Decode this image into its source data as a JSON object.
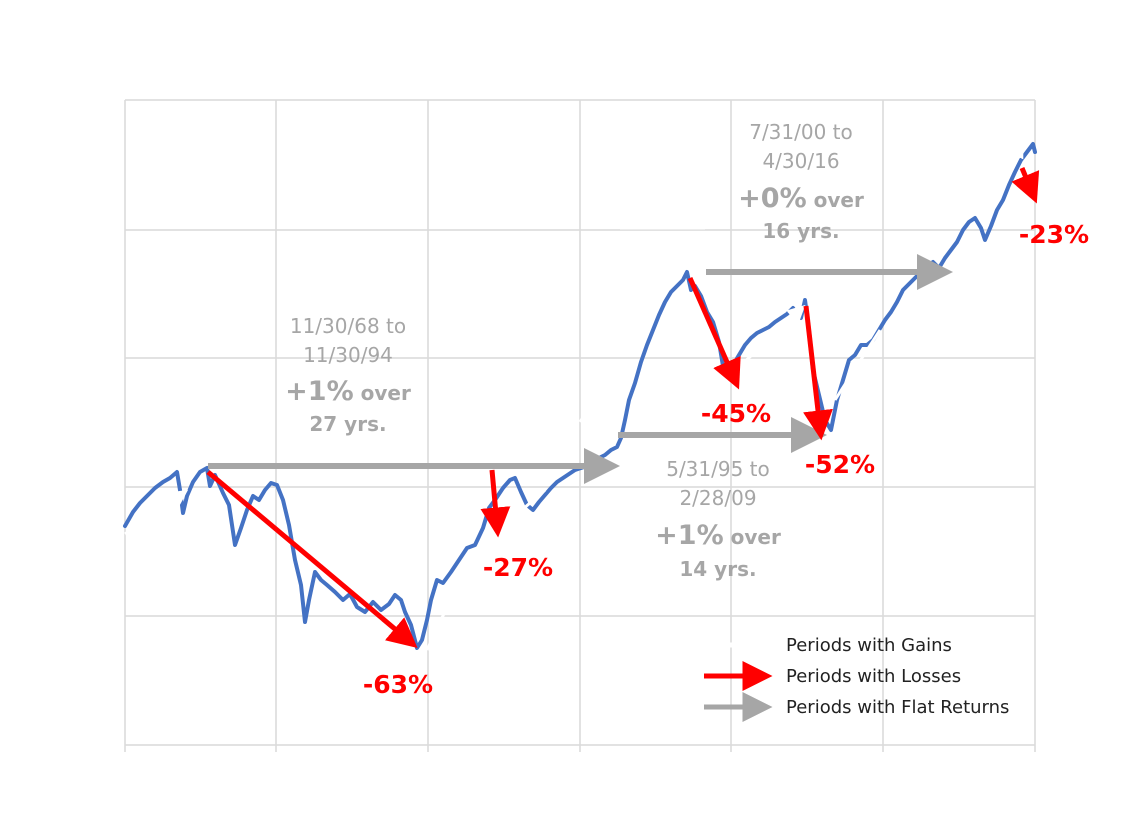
{
  "chart_data": {
    "type": "line",
    "title": "",
    "xlabel": "",
    "ylabel": "",
    "grid": true,
    "legend_position": "bottom-right",
    "colors": {
      "series": "#4472c4",
      "gain": "#ffffff",
      "loss": "#ff0000",
      "flat": "#a6a6a6",
      "grid": "#d9d9d9"
    },
    "series_points": [
      [
        0,
        526
      ],
      [
        8,
        512
      ],
      [
        15,
        503
      ],
      [
        22,
        496
      ],
      [
        30,
        488
      ],
      [
        38,
        482
      ],
      [
        45,
        478
      ],
      [
        52,
        472
      ],
      [
        55,
        490
      ],
      [
        58,
        513
      ],
      [
        62,
        496
      ],
      [
        68,
        482
      ],
      [
        75,
        472
      ],
      [
        82,
        468
      ],
      [
        85,
        486
      ],
      [
        90,
        475
      ],
      [
        98,
        493
      ],
      [
        104,
        505
      ],
      [
        110,
        545
      ],
      [
        116,
        528
      ],
      [
        122,
        510
      ],
      [
        128,
        496
      ],
      [
        134,
        500
      ],
      [
        140,
        490
      ],
      [
        146,
        483
      ],
      [
        152,
        485
      ],
      [
        158,
        500
      ],
      [
        164,
        525
      ],
      [
        170,
        560
      ],
      [
        176,
        585
      ],
      [
        180,
        622
      ],
      [
        184,
        600
      ],
      [
        190,
        572
      ],
      [
        196,
        580
      ],
      [
        202,
        585
      ],
      [
        210,
        592
      ],
      [
        218,
        600
      ],
      [
        225,
        594
      ],
      [
        232,
        607
      ],
      [
        240,
        612
      ],
      [
        248,
        602
      ],
      [
        256,
        610
      ],
      [
        264,
        604
      ],
      [
        270,
        595
      ],
      [
        276,
        600
      ],
      [
        280,
        612
      ],
      [
        286,
        625
      ],
      [
        292,
        648
      ],
      [
        297,
        640
      ],
      [
        302,
        620
      ],
      [
        306,
        600
      ],
      [
        312,
        580
      ],
      [
        318,
        583
      ],
      [
        326,
        572
      ],
      [
        334,
        560
      ],
      [
        342,
        548
      ],
      [
        350,
        545
      ],
      [
        358,
        528
      ],
      [
        364,
        508
      ],
      [
        370,
        500
      ],
      [
        378,
        488
      ],
      [
        385,
        480
      ],
      [
        390,
        478
      ],
      [
        396,
        492
      ],
      [
        402,
        505
      ],
      [
        408,
        510
      ],
      [
        414,
        502
      ],
      [
        420,
        495
      ],
      [
        426,
        488
      ],
      [
        432,
        482
      ],
      [
        438,
        478
      ],
      [
        444,
        474
      ],
      [
        450,
        470
      ],
      [
        456,
        468
      ],
      [
        462,
        466
      ],
      [
        468,
        462
      ],
      [
        474,
        458
      ],
      [
        480,
        455
      ],
      [
        486,
        450
      ],
      [
        492,
        447
      ],
      [
        496,
        438
      ],
      [
        500,
        420
      ],
      [
        504,
        400
      ],
      [
        510,
        383
      ],
      [
        516,
        362
      ],
      [
        522,
        345
      ],
      [
        528,
        330
      ],
      [
        534,
        315
      ],
      [
        540,
        302
      ],
      [
        546,
        292
      ],
      [
        552,
        286
      ],
      [
        558,
        280
      ],
      [
        562,
        272
      ],
      [
        566,
        290
      ],
      [
        570,
        286
      ],
      [
        576,
        296
      ],
      [
        582,
        312
      ],
      [
        588,
        322
      ],
      [
        594,
        342
      ],
      [
        598,
        366
      ],
      [
        602,
        374
      ],
      [
        608,
        365
      ],
      [
        614,
        355
      ],
      [
        620,
        345
      ],
      [
        626,
        338
      ],
      [
        632,
        333
      ],
      [
        638,
        330
      ],
      [
        644,
        327
      ],
      [
        650,
        322
      ],
      [
        656,
        318
      ],
      [
        662,
        314
      ],
      [
        668,
        308
      ],
      [
        672,
        314
      ],
      [
        676,
        318
      ],
      [
        680,
        300
      ],
      [
        684,
        330
      ],
      [
        688,
        370
      ],
      [
        694,
        395
      ],
      [
        700,
        420
      ],
      [
        706,
        430
      ],
      [
        712,
        400
      ],
      [
        718,
        380
      ],
      [
        724,
        360
      ],
      [
        730,
        355
      ],
      [
        736,
        345
      ],
      [
        742,
        345
      ],
      [
        748,
        340
      ],
      [
        754,
        330
      ],
      [
        760,
        320
      ],
      [
        766,
        312
      ],
      [
        772,
        302
      ],
      [
        778,
        290
      ],
      [
        784,
        284
      ],
      [
        790,
        278
      ],
      [
        796,
        272
      ],
      [
        802,
        266
      ],
      [
        808,
        262
      ],
      [
        814,
        268
      ],
      [
        820,
        258
      ],
      [
        826,
        250
      ],
      [
        832,
        242
      ],
      [
        838,
        230
      ],
      [
        844,
        222
      ],
      [
        850,
        218
      ],
      [
        856,
        228
      ],
      [
        860,
        240
      ],
      [
        866,
        226
      ],
      [
        872,
        210
      ],
      [
        878,
        200
      ],
      [
        884,
        185
      ],
      [
        890,
        172
      ],
      [
        896,
        160
      ],
      [
        902,
        152
      ],
      [
        908,
        144
      ],
      [
        910,
        152
      ]
    ],
    "series_origin": [
      125,
      100
    ],
    "losses": [
      "-63%",
      "-27%",
      "-45%",
      "-52%",
      "-23%"
    ],
    "flat_periods": [
      {
        "date_line1": "11/30/68 to",
        "date_line2": "11/30/94",
        "ret_value": "+1%",
        "ret_suffix": " over",
        "years": "27 yrs."
      },
      {
        "date_line1": "5/31/95 to",
        "date_line2": "2/28/09",
        "ret_value": "+1%",
        "ret_suffix": " over",
        "years": "14 yrs."
      },
      {
        "date_line1": "7/31/00 to",
        "date_line2": "4/30/16",
        "ret_value": "+0%",
        "ret_suffix": " over",
        "years": "16 yrs."
      }
    ]
  },
  "legend": {
    "gains": "Periods with Gains",
    "losses": "Periods with Losses",
    "flat": "Periods with Flat Returns"
  }
}
